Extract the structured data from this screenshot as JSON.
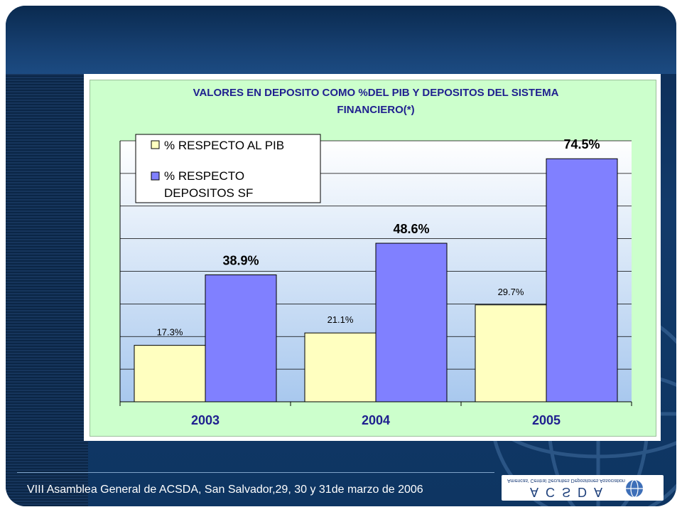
{
  "colors": {
    "pib": "#ffffc0",
    "sf": "#8080ff",
    "plot_bg_top": "#ffffff",
    "plot_bg_bottom": "#a8c8ee",
    "chart_area_bg": "#ccffcc"
  },
  "chart_data": {
    "type": "bar",
    "title_line1": "VALORES EN DEPOSITO COMO %DEL PIB Y DEPOSITOS DEL SISTEMA",
    "title_line2": "FINANCIERO(*)",
    "categories": [
      "2003",
      "2004",
      "2005"
    ],
    "series": [
      {
        "name": "% RESPECTO AL PIB",
        "values": [
          17.3,
          21.1,
          29.7
        ],
        "labels": [
          "17.3%",
          "21.1%",
          "29.7%"
        ]
      },
      {
        "name": "% RESPECTO DEPOSITOS SF",
        "values": [
          38.9,
          48.6,
          74.5
        ],
        "labels": [
          "38.9%",
          "48.6%",
          "74.5%"
        ]
      }
    ],
    "legend": {
      "item1": "% RESPECTO AL PIB",
      "item2_line1": "% RESPECTO",
      "item2_line2": "DEPOSITOS SF"
    },
    "ylim": [
      0,
      80
    ],
    "grid": true,
    "legend_position": "top-left"
  },
  "footer": {
    "text": "VIII Asamblea General de ACSDA, San Salvador,29, 30 y 31de marzo de 2006"
  },
  "logo": {
    "small_text": "Americas' Central Securities Depositories Association",
    "main_text": "ACSDA"
  }
}
